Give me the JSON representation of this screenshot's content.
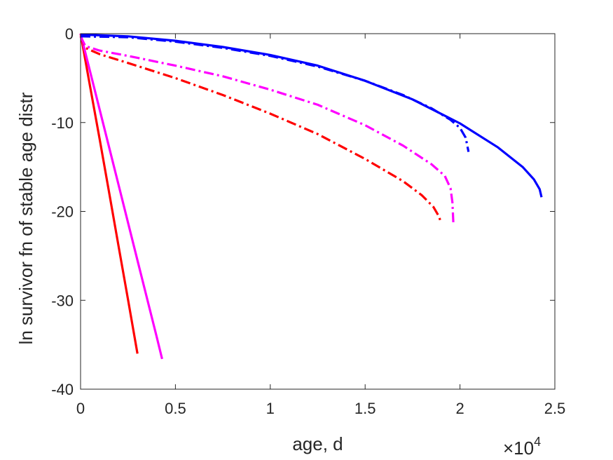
{
  "chart_data": {
    "type": "line",
    "title": "",
    "xlabel": "age, d",
    "ylabel": "ln survivor fn of stable age distr",
    "x_multiplier": {
      "base": "×10",
      "exponent": "4"
    },
    "xlim": [
      0,
      25000
    ],
    "ylim": [
      -40,
      0
    ],
    "xticks": [
      0,
      5000,
      10000,
      15000,
      20000,
      25000
    ],
    "xtick_labels": [
      "0",
      "0.5",
      "1",
      "1.5",
      "2",
      "2.5"
    ],
    "yticks": [
      0,
      -10,
      -20,
      -30,
      -40
    ],
    "ytick_labels": [
      "0",
      "-10",
      "-20",
      "-30",
      "-40"
    ],
    "grid": false,
    "series": [
      {
        "color": "#ff0000",
        "style": "solid",
        "x": [
          0,
          500,
          1000,
          1500,
          2000,
          2500,
          3000
        ],
        "y": [
          0,
          -5.9,
          -11.8,
          -17.8,
          -23.9,
          -29.9,
          -36.0
        ]
      },
      {
        "color": "#ff00ff",
        "style": "solid",
        "x": [
          0,
          1000,
          2000,
          3000,
          4000,
          4300
        ],
        "y": [
          0,
          -8.5,
          -17.0,
          -25.5,
          -34.0,
          -36.6
        ]
      },
      {
        "color": "#ff0000",
        "style": "dashdot",
        "x": [
          0,
          250,
          1000,
          2500,
          5000,
          7500,
          10000,
          12500,
          15000,
          17000,
          18000,
          18600,
          18900,
          19000
        ],
        "y": [
          -0.3,
          -1.6,
          -2.3,
          -3.3,
          -5.0,
          -6.9,
          -9.0,
          -11.3,
          -14.1,
          -16.6,
          -18.2,
          -19.5,
          -20.6,
          -21.3
        ]
      },
      {
        "color": "#ff00ff",
        "style": "dashdot",
        "x": [
          0,
          250,
          1000,
          2500,
          5000,
          7500,
          10000,
          12500,
          15000,
          17000,
          18500,
          19200,
          19500,
          19600,
          19650
        ],
        "y": [
          -0.3,
          -1.4,
          -1.9,
          -2.5,
          -3.6,
          -4.8,
          -6.3,
          -8.0,
          -10.3,
          -12.6,
          -14.7,
          -16.0,
          -17.4,
          -19.0,
          -21.3
        ]
      },
      {
        "color": "#0000ff",
        "style": "dashdot",
        "x": [
          0,
          2500,
          5000,
          7500,
          10000,
          12500,
          15000,
          17000,
          18500,
          19500,
          20000,
          20300,
          20450
        ],
        "y": [
          -0.3,
          -0.4,
          -0.9,
          -1.6,
          -2.5,
          -3.7,
          -5.3,
          -6.9,
          -8.4,
          -9.7,
          -10.6,
          -11.7,
          -13.3
        ]
      },
      {
        "color": "#0000ff",
        "style": "solid",
        "x": [
          0,
          2500,
          5000,
          7500,
          10000,
          12500,
          15000,
          17500,
          20000,
          22000,
          23300,
          23900,
          24200,
          24300
        ],
        "y": [
          -0.1,
          -0.3,
          -0.8,
          -1.5,
          -2.4,
          -3.6,
          -5.3,
          -7.4,
          -10.1,
          -12.8,
          -15.0,
          -16.4,
          -17.5,
          -18.4
        ]
      }
    ]
  }
}
